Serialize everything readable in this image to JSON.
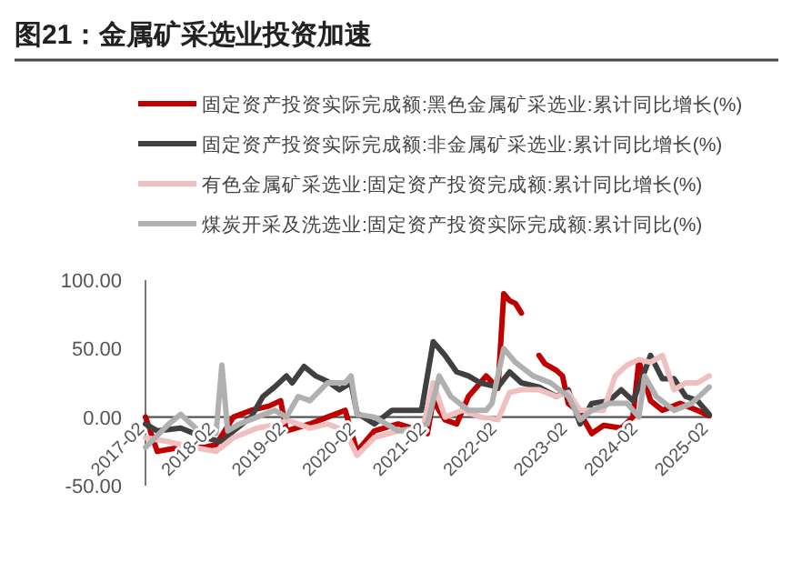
{
  "chart_data": {
    "type": "line",
    "title": "图21：金属矿采选业投资加速",
    "xlim": [
      "2017-02",
      "2025-02"
    ],
    "xticks": [
      "2017-02",
      "2018-02",
      "2019-02",
      "2020-02",
      "2021-02",
      "2022-02",
      "2023-02",
      "2024-02",
      "2025-02"
    ],
    "ylim": [
      -50,
      100
    ],
    "yticks": [
      {
        "value": -50,
        "label": "-50.00"
      },
      {
        "value": 0,
        "label": "0.00"
      },
      {
        "value": 50,
        "label": "50.00"
      },
      {
        "value": 100,
        "label": "100.00"
      }
    ],
    "grid": false,
    "legend": "top",
    "line_style": "solid",
    "series": [
      {
        "name": "固定资产投资实际完成额:黑色金属矿采选业:累计同比增长(%)",
        "color": "#c00000",
        "x": [
          "2017-02",
          "2017-04",
          "2017-08",
          "2017-12",
          "2018-02",
          "2018-05",
          "2018-08",
          "2018-11",
          "2019-01",
          "2019-02",
          "2019-06",
          "2019-09",
          "2019-12",
          "2020-02",
          "2020-05",
          "2020-09",
          "2021-01",
          "2021-02",
          "2021-03",
          "2021-05",
          "2021-07",
          "2021-09",
          "2021-11",
          "2021-12",
          "2022-02",
          "2022-03",
          "2022-04",
          "2022-05",
          "2022-06",
          "2022-07",
          "2022-09",
          "2022-10",
          "2022-12",
          "2023-01",
          "2023-02",
          "2023-04",
          "2023-06",
          "2023-08",
          "2023-11",
          "2024-01",
          "2024-02",
          "2024-04",
          "2024-06",
          "2024-09",
          "2024-12",
          "2025-02"
        ],
        "values": [
          0,
          -25,
          -22,
          -22,
          -20,
          0,
          5,
          8,
          12,
          -10,
          -5,
          0,
          5,
          -25,
          -10,
          -5,
          -10,
          -12,
          12,
          -2,
          -5,
          15,
          25,
          30,
          21,
          90,
          85,
          83,
          76,
          null,
          45,
          39,
          34,
          30,
          10,
          3,
          -12,
          -6,
          -8,
          0,
          41,
          12,
          5,
          10,
          5,
          1
        ]
      },
      {
        "name": "固定资产投资实际完成额:非金属矿采选业:累计同比增长(%)",
        "color": "#404040",
        "x": [
          "2017-02",
          "2017-04",
          "2017-08",
          "2017-12",
          "2018-03",
          "2018-05",
          "2018-08",
          "2018-10",
          "2018-12",
          "2019-02",
          "2019-03",
          "2019-05",
          "2019-07",
          "2019-09",
          "2019-11",
          "2020-01",
          "2020-02",
          "2020-05",
          "2020-08",
          "2020-12",
          "2021-01",
          "2021-03",
          "2021-05",
          "2021-07",
          "2021-09",
          "2021-11",
          "2022-02",
          "2022-04",
          "2022-06",
          "2022-09",
          "2022-12",
          "2023-02",
          "2023-04",
          "2023-06",
          "2023-09",
          "2023-11",
          "2024-01",
          "2024-02",
          "2024-04",
          "2024-06",
          "2024-08",
          "2024-10",
          "2024-12",
          "2025-02"
        ],
        "values": [
          -5,
          -10,
          -8,
          -15,
          -18,
          -10,
          0,
          15,
          22,
          30,
          25,
          37,
          30,
          26,
          20,
          25,
          3,
          -5,
          5,
          5,
          5,
          55,
          45,
          33,
          30,
          25,
          22,
          33,
          25,
          22,
          15,
          20,
          -5,
          10,
          12,
          20,
          12,
          22,
          45,
          28,
          28,
          15,
          12,
          2
        ]
      },
      {
        "name": "有色金属矿采选业:固定资产投资完成额:累计同比增长(%)",
        "color": "#f0c0c0",
        "x": [
          "2017-02",
          "2017-06",
          "2017-10",
          "2018-02",
          "2018-05",
          "2018-09",
          "2019-01",
          "2019-02",
          "2019-06",
          "2019-09",
          "2019-12",
          "2020-02",
          "2020-05",
          "2020-09",
          "2021-01",
          "2021-03",
          "2021-05",
          "2021-08",
          "2021-11",
          "2022-02",
          "2022-04",
          "2022-06",
          "2022-09",
          "2022-12",
          "2023-02",
          "2023-04",
          "2023-08",
          "2023-10",
          "2023-12",
          "2024-02",
          "2024-04",
          "2024-06",
          "2024-08",
          "2024-10",
          "2024-12",
          "2025-02"
        ],
        "values": [
          -15,
          -18,
          -22,
          -25,
          -15,
          -8,
          -5,
          -2,
          -8,
          -5,
          -10,
          -28,
          -15,
          -10,
          -12,
          25,
          0,
          5,
          0,
          -2,
          18,
          20,
          20,
          15,
          18,
          5,
          5,
          30,
          38,
          42,
          40,
          45,
          20,
          25,
          25,
          30
        ]
      },
      {
        "name": "煤炭开采及洗选业:固定资产投资实际完成额:累计同比(%)",
        "color": "#b0b0b0",
        "x": [
          "2017-02",
          "2017-06",
          "2017-08",
          "2017-11",
          "2018-02",
          "2018-03",
          "2018-04",
          "2018-06",
          "2018-09",
          "2018-12",
          "2019-02",
          "2019-04",
          "2019-06",
          "2019-09",
          "2019-12",
          "2020-01",
          "2020-02",
          "2020-05",
          "2020-09",
          "2020-12",
          "2021-02",
          "2021-04",
          "2021-06",
          "2021-09",
          "2021-12",
          "2022-01",
          "2022-03",
          "2022-05",
          "2022-08",
          "2022-11",
          "2023-02",
          "2023-04",
          "2023-06",
          "2023-09",
          "2023-12",
          "2024-02",
          "2024-03",
          "2024-05",
          "2024-08",
          "2024-11",
          "2025-02"
        ],
        "values": [
          -22,
          -5,
          2,
          -10,
          -12,
          38,
          -10,
          -5,
          0,
          5,
          0,
          15,
          12,
          25,
          25,
          30,
          2,
          0,
          -10,
          -8,
          -5,
          30,
          15,
          5,
          5,
          10,
          50,
          40,
          30,
          25,
          15,
          -2,
          5,
          10,
          10,
          0,
          30,
          15,
          5,
          10,
          22
        ]
      }
    ]
  }
}
